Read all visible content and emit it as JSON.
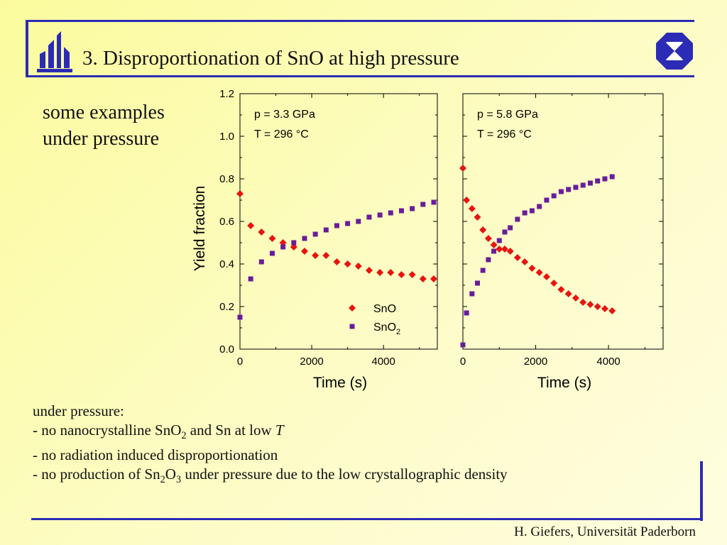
{
  "slide": {
    "title": "3. Disproportionation of SnO at high pressure",
    "examples_line1": "some examples",
    "examples_line2": "under pressure",
    "notes": {
      "intro": "under pressure:",
      "line1_a": "- no nanocrystalline SnO",
      "line1_sub": "2",
      "line1_b": " and Sn at low ",
      "line1_italic": "T",
      "line2": "- no radiation induced disproportionation",
      "line3_a": "- no production of Sn",
      "line3_sub1": "2",
      "line3_b": "O",
      "line3_sub2": "3",
      "line3_c": " under pressure due to the low crystallographic density"
    },
    "footer": "H. Giefers, Universität Paderborn",
    "colors": {
      "accent": "#2b2bb5",
      "sno": "#e8140f",
      "sno2": "#6a1c9b"
    }
  },
  "chart_data": [
    {
      "type": "scatter",
      "title": "",
      "xlabel": "Time (s)",
      "ylabel": "Yield fraction",
      "xlim": [
        0,
        5500
      ],
      "ylim": [
        0,
        1.2
      ],
      "xticks": [
        "0",
        "2000",
        "4000"
      ],
      "yticks": [
        "0.0",
        "0.2",
        "0.4",
        "0.6",
        "0.8",
        "1.0",
        "1.2"
      ],
      "annotation": [
        "p = 3.3 GPa",
        "T = 296 °C"
      ],
      "legend": {
        "position": "bottom-right",
        "entries": [
          "SnO",
          "SnO2"
        ]
      },
      "series": [
        {
          "name": "SnO",
          "marker": "diamond",
          "color": "#e8140f",
          "x": [
            0,
            300,
            600,
            900,
            1200,
            1500,
            1800,
            2100,
            2400,
            2700,
            3000,
            3300,
            3600,
            3900,
            4200,
            4500,
            4800,
            5100,
            5400
          ],
          "y": [
            0.73,
            0.58,
            0.55,
            0.52,
            0.5,
            0.48,
            0.46,
            0.44,
            0.44,
            0.41,
            0.4,
            0.39,
            0.37,
            0.36,
            0.36,
            0.35,
            0.35,
            0.33,
            0.33
          ]
        },
        {
          "name": "SnO2",
          "marker": "square",
          "color": "#6a1c9b",
          "x": [
            0,
            300,
            600,
            900,
            1200,
            1500,
            1800,
            2100,
            2400,
            2700,
            3000,
            3300,
            3600,
            3900,
            4200,
            4500,
            4800,
            5100,
            5400
          ],
          "y": [
            0.15,
            0.33,
            0.41,
            0.45,
            0.48,
            0.5,
            0.52,
            0.54,
            0.56,
            0.58,
            0.59,
            0.6,
            0.62,
            0.63,
            0.64,
            0.65,
            0.66,
            0.68,
            0.69
          ]
        }
      ]
    },
    {
      "type": "scatter",
      "title": "",
      "xlabel": "Time (s)",
      "ylabel": "",
      "xlim": [
        0,
        5500
      ],
      "ylim": [
        0,
        1.2
      ],
      "xticks": [
        "0",
        "2000",
        "4000"
      ],
      "annotation": [
        "p = 5.8 GPa",
        "T = 296 °C"
      ],
      "series": [
        {
          "name": "SnO",
          "marker": "diamond",
          "color": "#e8140f",
          "x": [
            0,
            100,
            250,
            400,
            550,
            700,
            850,
            1000,
            1150,
            1300,
            1500,
            1700,
            1900,
            2100,
            2300,
            2500,
            2700,
            2900,
            3100,
            3300,
            3500,
            3700,
            3900,
            4100
          ],
          "y": [
            0.85,
            0.7,
            0.66,
            0.62,
            0.56,
            0.52,
            0.49,
            0.47,
            0.47,
            0.46,
            0.43,
            0.41,
            0.38,
            0.36,
            0.34,
            0.31,
            0.28,
            0.26,
            0.24,
            0.22,
            0.21,
            0.2,
            0.19,
            0.18
          ]
        },
        {
          "name": "SnO2",
          "marker": "square",
          "color": "#6a1c9b",
          "x": [
            0,
            100,
            250,
            400,
            550,
            700,
            850,
            1000,
            1150,
            1300,
            1500,
            1700,
            1900,
            2100,
            2300,
            2500,
            2700,
            2900,
            3100,
            3300,
            3500,
            3700,
            3900,
            4100
          ],
          "y": [
            0.02,
            0.17,
            0.26,
            0.31,
            0.37,
            0.42,
            0.46,
            0.51,
            0.55,
            0.57,
            0.61,
            0.64,
            0.65,
            0.67,
            0.7,
            0.72,
            0.74,
            0.75,
            0.76,
            0.77,
            0.78,
            0.79,
            0.8,
            0.81
          ]
        }
      ]
    }
  ]
}
